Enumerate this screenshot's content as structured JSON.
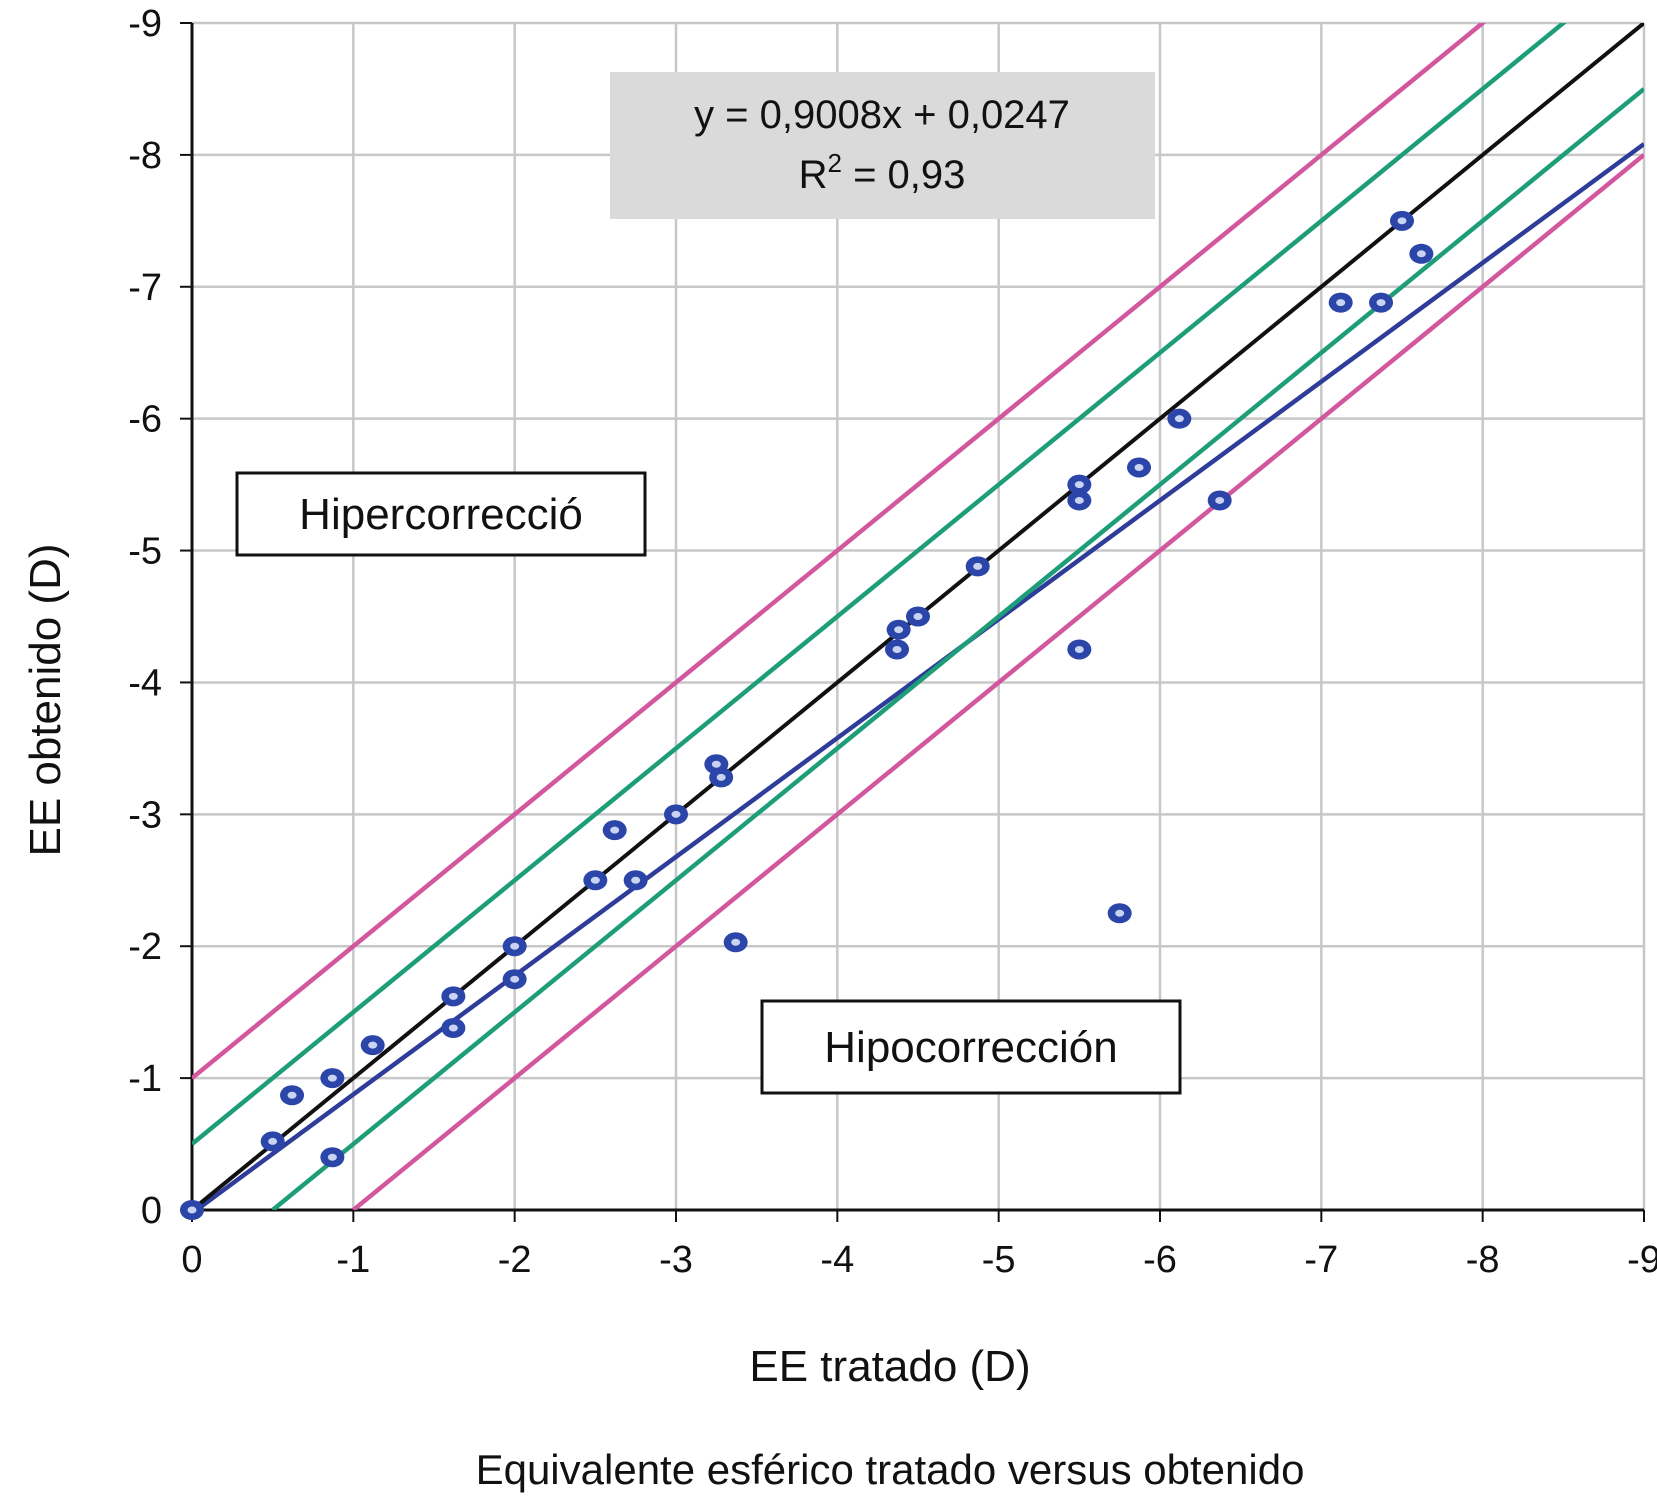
{
  "chart_data": {
    "type": "scatter",
    "caption": "Equivalente esférico tratado versus obtenido",
    "xlabel": "EE tratado (D)",
    "ylabel": "EE obtenido (D)",
    "xlim": [
      0,
      -9
    ],
    "ylim": [
      0,
      -9
    ],
    "x_ticks": [
      "0",
      "-1",
      "-2",
      "-3",
      "-4",
      "-5",
      "-6",
      "-7",
      "-8",
      "-9"
    ],
    "y_ticks": [
      "0",
      "-1",
      "-2",
      "-3",
      "-4",
      "-5",
      "-6",
      "-7",
      "-8",
      "-9"
    ],
    "grid": true,
    "equation": {
      "line1": "y = 0,9008x + 0,0247",
      "r2_prefix": "R",
      "r2_sup": "2",
      "r2_suffix": " = 0,93"
    },
    "annotations": {
      "upper": "Hipercorrecció",
      "lower": "Hipocorrección"
    },
    "points": [
      [
        0,
        0
      ],
      [
        -0.5,
        -0.52
      ],
      [
        -0.62,
        -0.87
      ],
      [
        -0.87,
        -1.0
      ],
      [
        -0.87,
        -0.4
      ],
      [
        -1.12,
        -1.25
      ],
      [
        -1.62,
        -1.62
      ],
      [
        -1.62,
        -1.38
      ],
      [
        -2.0,
        -2.0
      ],
      [
        -2.0,
        -1.75
      ],
      [
        -2.5,
        -2.5
      ],
      [
        -2.62,
        -2.88
      ],
      [
        -2.75,
        -2.5
      ],
      [
        -3.0,
        -3.0
      ],
      [
        -3.25,
        -3.38
      ],
      [
        -3.28,
        -3.28
      ],
      [
        -3.37,
        -2.03
      ],
      [
        -4.37,
        -4.25
      ],
      [
        -4.38,
        -4.4
      ],
      [
        -4.5,
        -4.5
      ],
      [
        -4.87,
        -4.88
      ],
      [
        -5.5,
        -5.5
      ],
      [
        -5.5,
        -5.38
      ],
      [
        -5.5,
        -4.25
      ],
      [
        -5.75,
        -2.25
      ],
      [
        -5.87,
        -5.63
      ],
      [
        -6.12,
        -6.0
      ],
      [
        -6.37,
        -5.38
      ],
      [
        -7.12,
        -6.88
      ],
      [
        -7.37,
        -6.88
      ],
      [
        -7.5,
        -7.5
      ],
      [
        -7.62,
        -7.25
      ]
    ],
    "lines": [
      {
        "kind": "regression",
        "slope": 0.9008,
        "intercept": 0.0247,
        "color": "#2e3d99",
        "x": [
          0,
          -9
        ]
      },
      {
        "kind": "identity",
        "slope": 1,
        "intercept": 0,
        "color": "#111111",
        "x": [
          0,
          -9
        ]
      },
      {
        "kind": "band",
        "slope": 1,
        "intercept": -0.5,
        "color": "#1e9e78",
        "x": [
          0,
          -9
        ]
      },
      {
        "kind": "band",
        "slope": 1,
        "intercept": 0.5,
        "color": "#1e9e78",
        "x": [
          -0.5,
          -9
        ]
      },
      {
        "kind": "band",
        "slope": 1,
        "intercept": -1,
        "color": "#d2579e",
        "x": [
          0,
          -9
        ]
      },
      {
        "kind": "band",
        "slope": 1,
        "intercept": 1,
        "color": "#d2579e",
        "x": [
          -1,
          -9
        ]
      }
    ],
    "colors": {
      "grid": "#c8c8c8",
      "marker_fill": "#2b45a8",
      "marker_center": "#c9d3f2",
      "equation_box": "#dadada"
    }
  }
}
